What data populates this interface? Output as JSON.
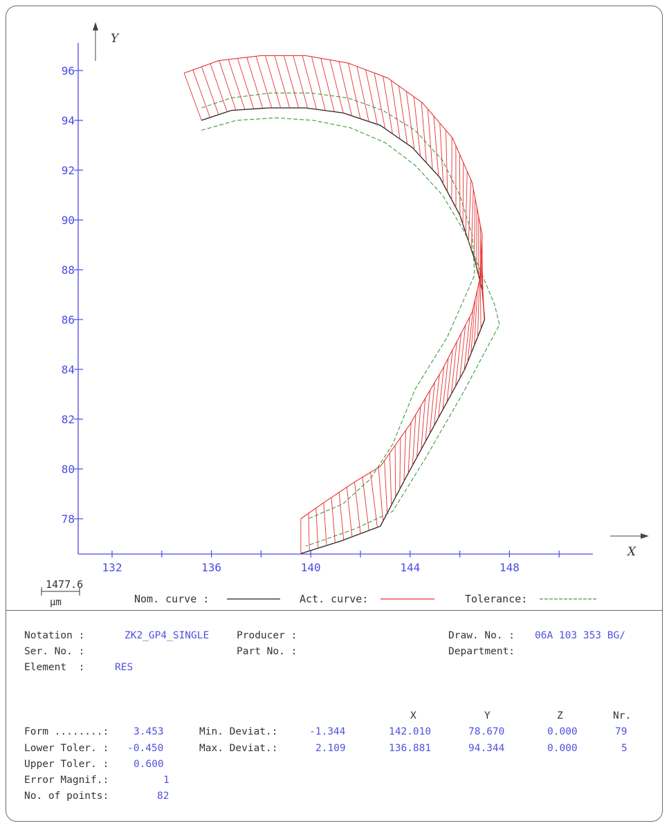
{
  "chart_data": {
    "type": "line",
    "xlabel": "X",
    "ylabel": "Y",
    "xlim": [
      130,
      151
    ],
    "ylim": [
      76.4,
      97
    ],
    "x_ticks": [
      132,
      136,
      140,
      144,
      148
    ],
    "y_ticks": [
      78,
      80,
      82,
      84,
      86,
      88,
      90,
      92,
      94,
      96
    ],
    "scale_label": "1477.6",
    "scale_unit": "μm",
    "legend": [
      {
        "label": "Nom. curve :",
        "color": "#222222",
        "style": "solid"
      },
      {
        "label": "Act. curve:",
        "color": "#e83030",
        "style": "solid"
      },
      {
        "label": "Tolerance:",
        "color": "#3a9a3a",
        "style": "dashed"
      }
    ],
    "series": [
      {
        "name": "Nom. curve",
        "x": [
          135.6,
          136.8,
          138.3,
          139.8,
          141.3,
          142.8,
          144.1,
          145.2,
          146.0,
          146.6,
          146.9,
          147.0,
          146.2,
          145.0,
          143.8,
          142.8,
          141.2,
          139.6
        ],
        "y": [
          94.0,
          94.4,
          94.5,
          94.5,
          94.3,
          93.8,
          92.9,
          91.7,
          90.2,
          88.4,
          87.2,
          86.0,
          84.0,
          81.8,
          79.6,
          77.7,
          77.1,
          76.6
        ]
      },
      {
        "name": "Act. curve",
        "x": [
          134.9,
          136.3,
          138.0,
          139.8,
          141.5,
          143.1,
          144.5,
          145.7,
          146.5,
          146.9,
          146.8,
          146.5,
          145.3,
          144.0,
          142.8,
          141.8,
          140.6,
          139.6
        ],
        "y": [
          95.9,
          96.4,
          96.6,
          96.6,
          96.3,
          95.7,
          94.7,
          93.3,
          91.5,
          89.4,
          87.6,
          86.3,
          84.0,
          81.8,
          80.1,
          79.5,
          78.7,
          78.0
        ]
      },
      {
        "name": "Tolerance upper",
        "x": [
          135.6,
          136.8,
          138.4,
          140.0,
          141.5,
          142.9,
          144.2,
          145.3,
          146.0,
          146.5,
          146.6,
          145.5,
          144.2,
          143.3,
          142.4,
          141.3,
          139.9
        ],
        "y": [
          94.5,
          94.9,
          95.1,
          95.1,
          94.9,
          94.4,
          93.6,
          92.4,
          91.0,
          89.4,
          87.8,
          85.3,
          83.2,
          81.0,
          79.6,
          78.6,
          78.0
        ]
      },
      {
        "name": "Tolerance lower",
        "x": [
          135.6,
          137.0,
          138.6,
          140.1,
          141.6,
          143.0,
          144.2,
          145.3,
          146.2,
          146.9,
          147.4,
          147.6,
          146.1,
          144.6,
          143.3,
          141.8,
          139.8
        ],
        "y": [
          93.6,
          94.0,
          94.1,
          94.0,
          93.7,
          93.1,
          92.2,
          91.0,
          89.5,
          87.8,
          86.6,
          85.8,
          83.0,
          80.4,
          78.3,
          77.6,
          76.9
        ]
      }
    ]
  },
  "info": {
    "notation_label": "Notation :",
    "notation_value": "ZK2_GP4_SINGLE",
    "ser_no_label": "Ser. No. :",
    "element_label": "Element  :",
    "element_value": "RES",
    "producer_label": "Producer :",
    "part_no_label": "Part No. :",
    "draw_no_label": "Draw. No. :",
    "draw_no_value": "06A 103 353 BG/",
    "department_label": "Department:"
  },
  "results": {
    "form_label": "Form ........:",
    "form_value": "3.453",
    "lower_tol_label": "Lower Toler. :",
    "lower_tol_value": "-0.450",
    "upper_tol_label": "Upper Toler. :",
    "upper_tol_value": "0.600",
    "error_magnif_label": "Error Magnif.:",
    "error_magnif_value": "1",
    "points_label": "No. of points:",
    "points_value": "82",
    "col_x": "X",
    "col_y": "Y",
    "col_z": "Z",
    "col_nr": "Nr.",
    "min_dev_label": "Min. Deviat.:",
    "min_dev_value": "-1.344",
    "min_x": "142.010",
    "min_y": "78.670",
    "min_z": "0.000",
    "min_nr": "79",
    "max_dev_label": "Max. Deviat.:",
    "max_dev_value": "2.109",
    "max_x": "136.881",
    "max_y": "94.344",
    "max_z": "0.000",
    "max_nr": "5"
  }
}
